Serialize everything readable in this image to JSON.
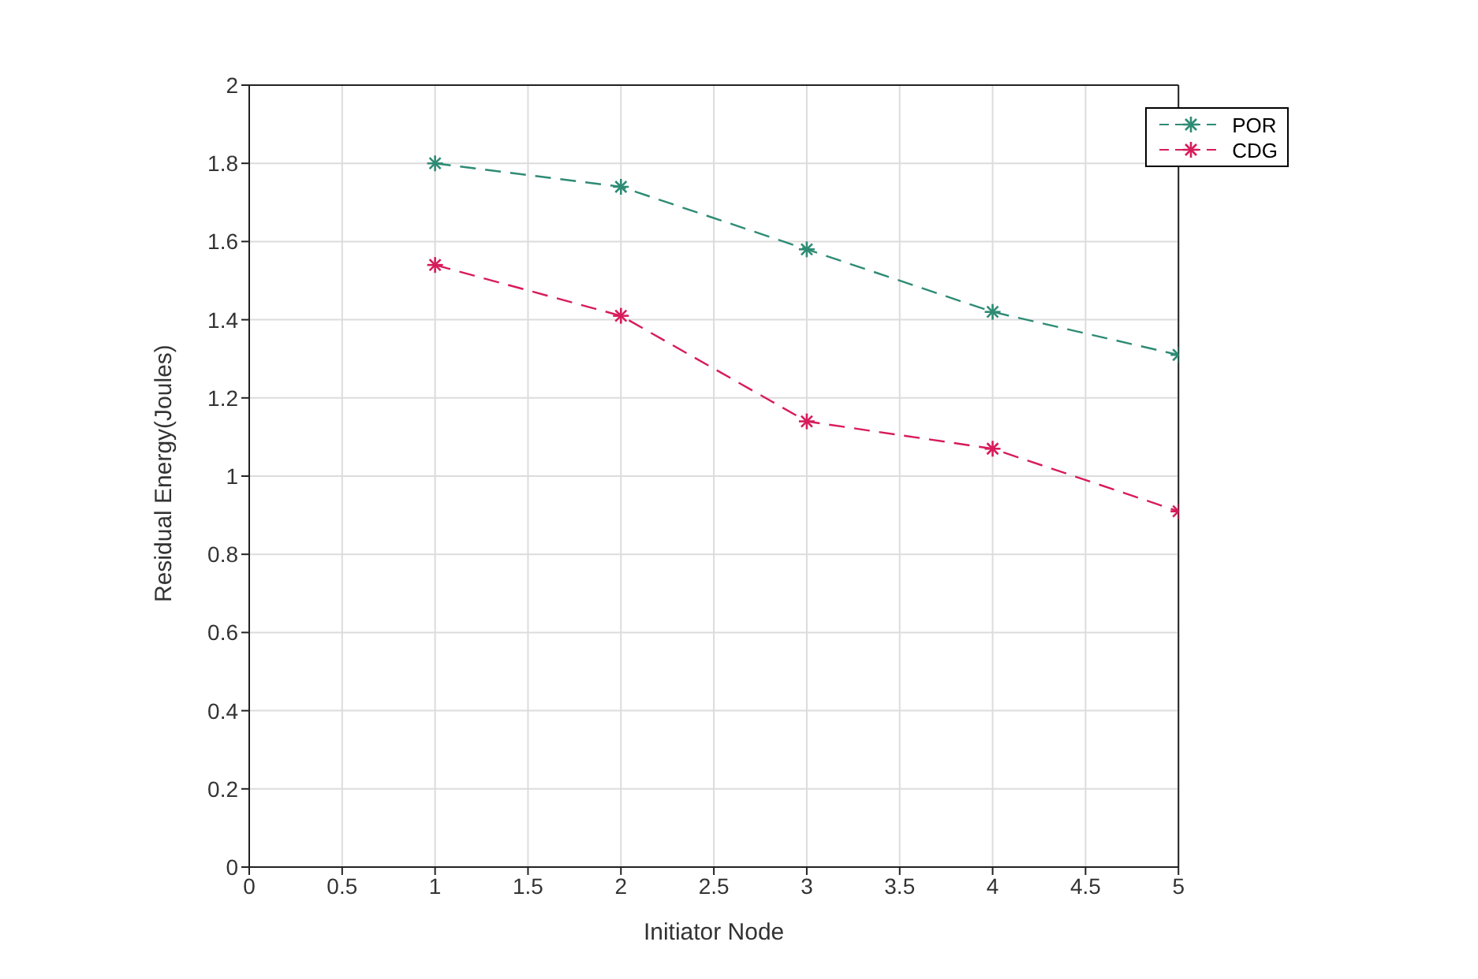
{
  "chart_data": {
    "type": "line",
    "xlabel": "Initiator Node",
    "ylabel": "Residual Energy(Joules)",
    "x": [
      1,
      2,
      3,
      4,
      5
    ],
    "series": [
      {
        "name": "POR",
        "color": "#2e8b74",
        "values": [
          1.8,
          1.74,
          1.58,
          1.42,
          1.31
        ]
      },
      {
        "name": "CDG",
        "color": "#d81b5a",
        "values": [
          1.54,
          1.41,
          1.14,
          1.07,
          0.91
        ]
      }
    ],
    "xlim": [
      0,
      5
    ],
    "xticks": [
      0,
      0.5,
      1,
      1.5,
      2,
      2.5,
      3,
      3.5,
      4,
      4.5,
      5
    ],
    "ylim": [
      0,
      2
    ],
    "yticks": [
      0,
      0.2,
      0.4,
      0.6,
      0.8,
      1,
      1.2,
      1.4,
      1.6,
      1.8,
      2
    ],
    "grid": true,
    "legend": "top right",
    "marker": "cross",
    "line_style": "dashed"
  }
}
